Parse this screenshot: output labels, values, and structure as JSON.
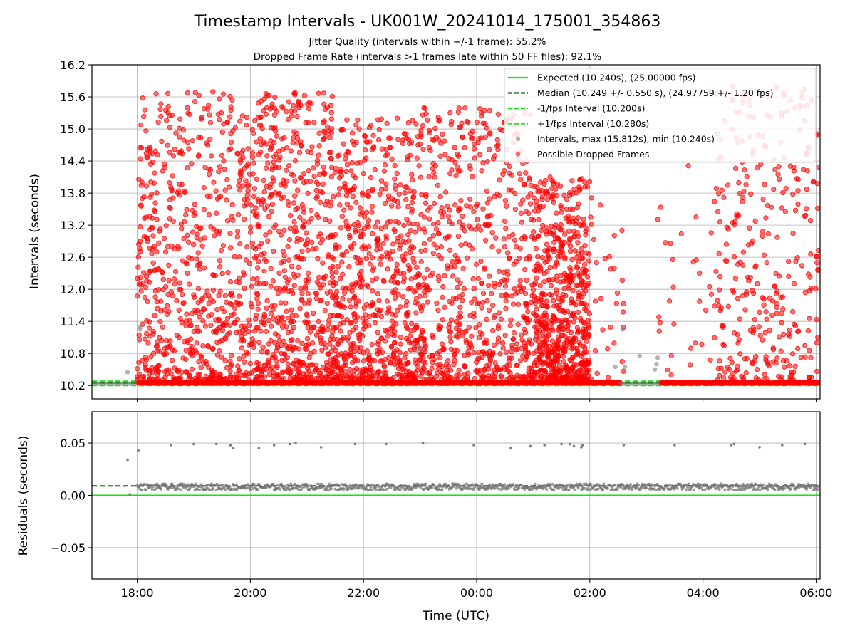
{
  "chart_data": [
    {
      "type": "scatter",
      "panel": "top",
      "title": "Timestamp Intervals - UK001W_20241014_175001_354863",
      "subtitle_lines": [
        "Jitter Quality (intervals within +/-1 frame): 55.2%",
        "Dropped Frame Rate (intervals >1 frames late within 50 FF files): 92.1%"
      ],
      "ylabel": "Intervals (seconds)",
      "xlim_hours": [
        17.2,
        30.07
      ],
      "ylim": [
        9.95,
        16.2
      ],
      "yticks": [
        10.2,
        10.8,
        11.4,
        12.0,
        12.6,
        13.2,
        13.8,
        14.4,
        15.0,
        15.6,
        16.2
      ],
      "ytick_labels": [
        "10.2",
        "10.8",
        "11.4",
        "12.0",
        "12.6",
        "13.2",
        "13.8",
        "14.4",
        "15.0",
        "15.6",
        "16.2"
      ],
      "grid": true,
      "legend_location": "top-right",
      "lines": [
        {
          "label": "Expected (10.240s), (25.00000 fps)",
          "y": 10.24,
          "color": "#00ee00",
          "style": "solid"
        },
        {
          "label": "Median (10.249 +/- 0.550 s), (24.97759 +/- 1.20 fps)",
          "y": 10.249,
          "color": "#006400",
          "style": "dashed"
        },
        {
          "label": "-1/fps Interval (10.200s)",
          "y": 10.2,
          "color": "#00ee00",
          "style": "dashed"
        },
        {
          "label": "+1/fps Interval (10.280s)",
          "y": 10.28,
          "color": "#00ee00",
          "style": "dashed"
        }
      ],
      "series": [
        {
          "name": "Intervals, max (15.812s), min (10.240s)",
          "color": "#808080",
          "x_hours": [
            17.83,
            18.05,
            18.05,
            22.95,
            23.0,
            26.45,
            26.58,
            26.62,
            26.88,
            27.15,
            27.18,
            27.2
          ],
          "values": [
            10.45,
            11.3,
            11.25,
            10.85,
            10.9,
            10.55,
            11.25,
            10.55,
            10.75,
            10.5,
            10.6,
            10.72
          ]
        },
        {
          "name": "Possible Dropped Frames",
          "color": "#ff0000",
          "clusters": [
            {
              "x_range_hours": [
                18.0,
                20.0
              ],
              "y_range": [
                10.3,
                15.7
              ],
              "density": "high"
            },
            {
              "x_range_hours": [
                20.0,
                21.5
              ],
              "y_range": [
                10.3,
                15.7
              ],
              "density": "high"
            },
            {
              "x_range_hours": [
                21.5,
                23.0
              ],
              "y_range": [
                10.3,
                15.2
              ],
              "density": "high"
            },
            {
              "x_range_hours": [
                23.0,
                25.0
              ],
              "y_range": [
                10.3,
                15.4
              ],
              "density": "high"
            },
            {
              "x_range_hours": [
                25.0,
                26.0
              ],
              "y_range": [
                10.3,
                14.1
              ],
              "density": "high"
            },
            {
              "x_range_hours": [
                26.0,
                26.6
              ],
              "y_range": [
                10.3,
                13.9
              ],
              "density": "low"
            },
            {
              "x_range_hours": [
                27.2,
                28.2
              ],
              "y_range": [
                10.3,
                14.4
              ],
              "density": "low"
            },
            {
              "x_range_hours": [
                28.2,
                30.05
              ],
              "y_range": [
                10.3,
                15.8
              ],
              "density": "medium"
            }
          ],
          "baseline_y": 10.24
        }
      ]
    },
    {
      "type": "scatter",
      "panel": "bottom",
      "ylabel": "Residuals (seconds)",
      "xlabel": "Time (UTC)",
      "xlim_hours": [
        17.2,
        30.07
      ],
      "ylim": [
        -0.08,
        0.08
      ],
      "yticks": [
        -0.05,
        0.0,
        0.05
      ],
      "ytick_labels": [
        "−0.05",
        "0.00",
        "0.05"
      ],
      "xticks_hours": [
        18,
        20,
        22,
        24,
        26,
        28,
        30
      ],
      "xtick_labels": [
        "18:00",
        "20:00",
        "22:00",
        "00:00",
        "02:00",
        "04:00",
        "06:00"
      ],
      "grid": true,
      "lines": [
        {
          "y": 0.0,
          "color": "#00ee00",
          "style": "solid"
        },
        {
          "y": 0.009,
          "color": "#006400",
          "style": "dashed"
        }
      ],
      "series": [
        {
          "name": "",
          "color": "#707070",
          "baseline": 0.008,
          "baseline_spread": 0.003,
          "outliers_x_hours": [
            17.83,
            17.87,
            18.02,
            18.6,
            19.0,
            19.4,
            19.65,
            19.7,
            20.15,
            20.42,
            20.7,
            20.8,
            21.25,
            21.85,
            22.4,
            23.05,
            23.95,
            24.6,
            24.95,
            25.2,
            25.5,
            25.65,
            25.72,
            25.85,
            25.87,
            26.6,
            27.5,
            28.5,
            28.55,
            29.0,
            29.4,
            29.8
          ],
          "outliers_values": [
            0.034,
            0.001,
            0.043,
            0.048,
            0.049,
            0.049,
            0.048,
            0.045,
            0.045,
            0.048,
            0.049,
            0.05,
            0.046,
            0.049,
            0.049,
            0.05,
            0.048,
            0.045,
            0.047,
            0.048,
            0.049,
            0.049,
            0.047,
            0.046,
            0.048,
            0.048,
            0.048,
            0.048,
            0.049,
            0.046,
            0.048,
            0.049
          ],
          "ymax_observed": 0.05
        }
      ]
    }
  ]
}
